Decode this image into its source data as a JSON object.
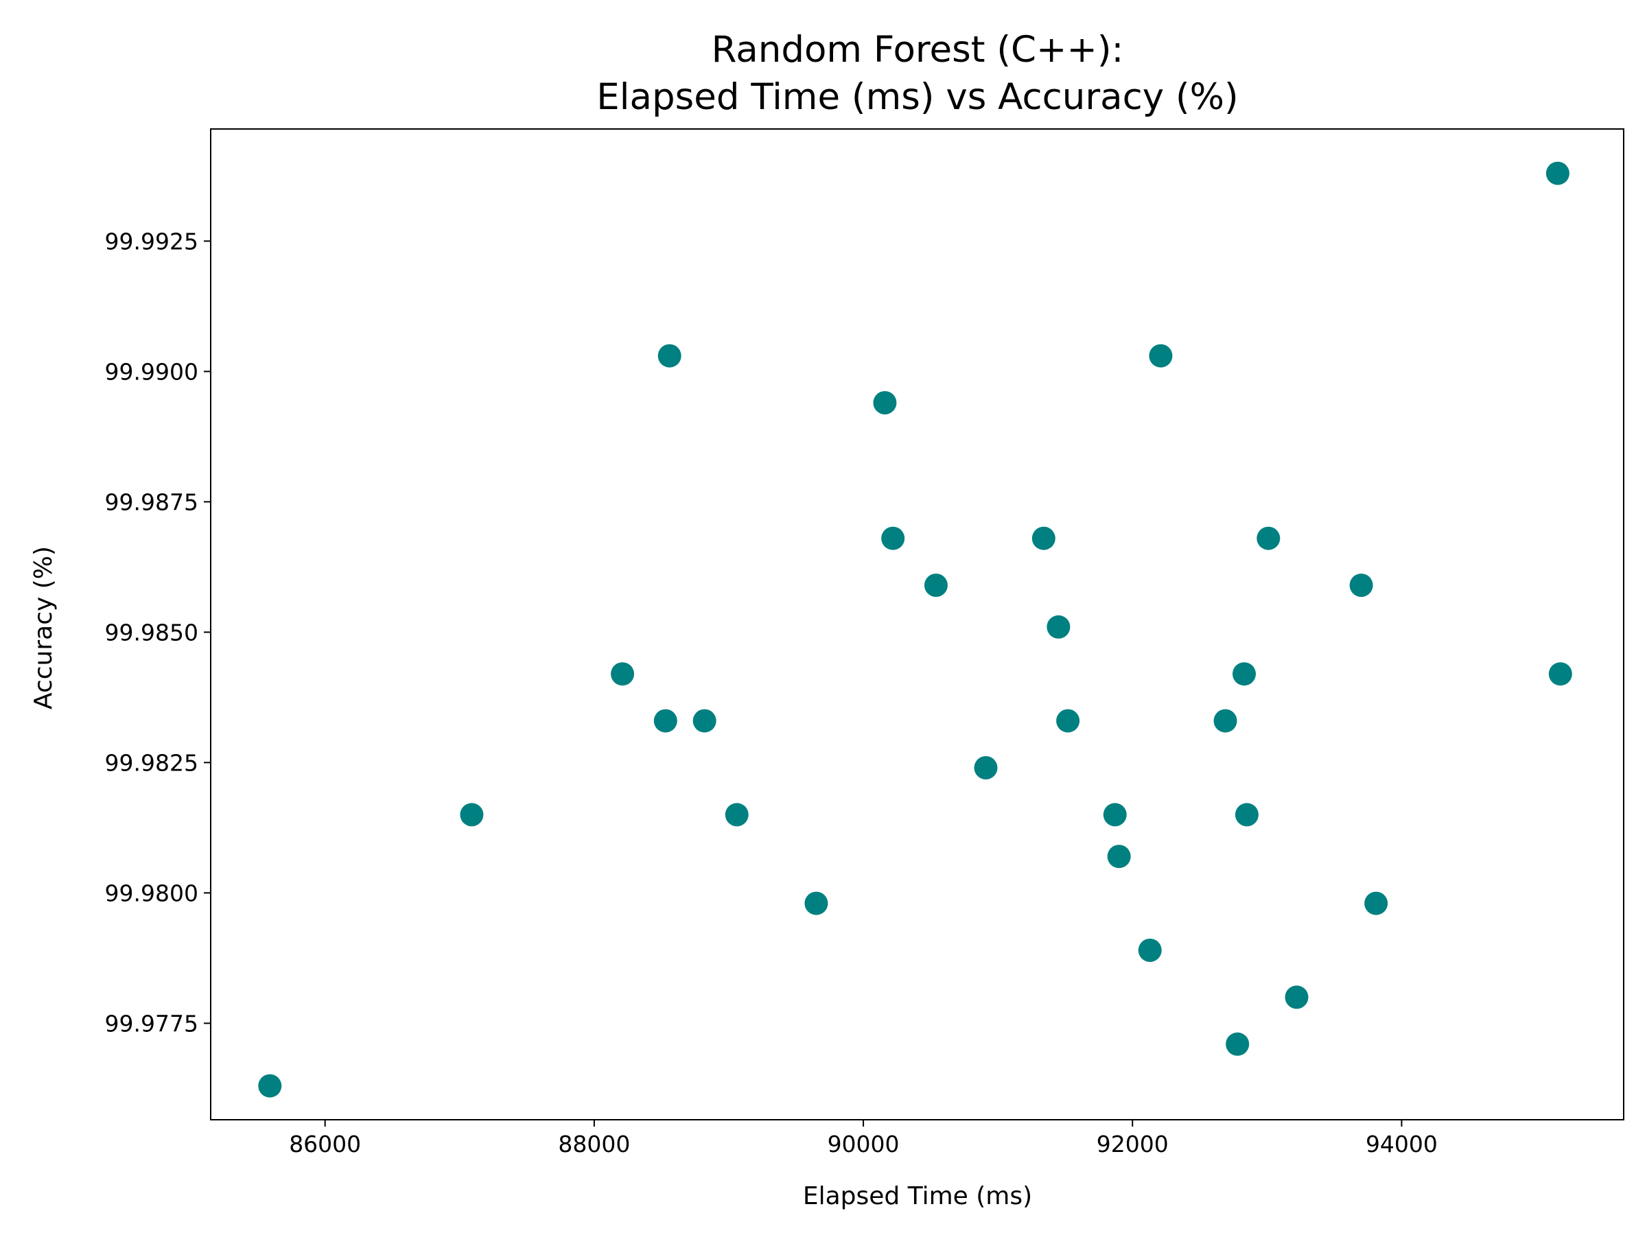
{
  "colors": {
    "marker": "#008080",
    "axes": "#000000",
    "background": "#ffffff"
  },
  "chart_data": {
    "type": "scatter",
    "title": [
      "Random Forest (C++):",
      "Elapsed Time (ms) vs Accuracy (%)"
    ],
    "xlabel": "Elapsed Time (ms)",
    "ylabel": "Accuracy (%)",
    "xlim": [
      85150,
      95650
    ],
    "ylim": [
      99.97565,
      99.99465
    ],
    "xticks": [
      86000,
      88000,
      90000,
      92000,
      94000
    ],
    "xtick_labels": [
      "86000",
      "88000",
      "90000",
      "92000",
      "94000"
    ],
    "yticks": [
      99.9775,
      99.98,
      99.9825,
      99.985,
      99.9875,
      99.99,
      99.9925
    ],
    "ytick_labels": [
      "99.9775",
      "99.9800",
      "99.9825",
      "99.9850",
      "99.9875",
      "99.9900",
      "99.9925"
    ],
    "grid": false,
    "legend": "none",
    "points": [
      {
        "x": 85590,
        "y": 99.9763
      },
      {
        "x": 87090,
        "y": 99.9815
      },
      {
        "x": 88210,
        "y": 99.9842
      },
      {
        "x": 88530,
        "y": 99.9833
      },
      {
        "x": 88560,
        "y": 99.9903
      },
      {
        "x": 88820,
        "y": 99.9833
      },
      {
        "x": 89060,
        "y": 99.9815
      },
      {
        "x": 89650,
        "y": 99.9798
      },
      {
        "x": 90160,
        "y": 99.9894
      },
      {
        "x": 90220,
        "y": 99.9868
      },
      {
        "x": 90540,
        "y": 99.9859
      },
      {
        "x": 90910,
        "y": 99.9824
      },
      {
        "x": 91340,
        "y": 99.9868
      },
      {
        "x": 91450,
        "y": 99.9851
      },
      {
        "x": 91520,
        "y": 99.9833
      },
      {
        "x": 91870,
        "y": 99.9815
      },
      {
        "x": 91900,
        "y": 99.9807
      },
      {
        "x": 92130,
        "y": 99.9789
      },
      {
        "x": 92210,
        "y": 99.9903
      },
      {
        "x": 92690,
        "y": 99.9833
      },
      {
        "x": 92780,
        "y": 99.9771
      },
      {
        "x": 92830,
        "y": 99.9842
      },
      {
        "x": 92850,
        "y": 99.9815
      },
      {
        "x": 93010,
        "y": 99.9868
      },
      {
        "x": 93220,
        "y": 99.978
      },
      {
        "x": 93700,
        "y": 99.9859
      },
      {
        "x": 93810,
        "y": 99.9798
      },
      {
        "x": 95160,
        "y": 99.9938
      },
      {
        "x": 95180,
        "y": 99.9842
      }
    ]
  }
}
